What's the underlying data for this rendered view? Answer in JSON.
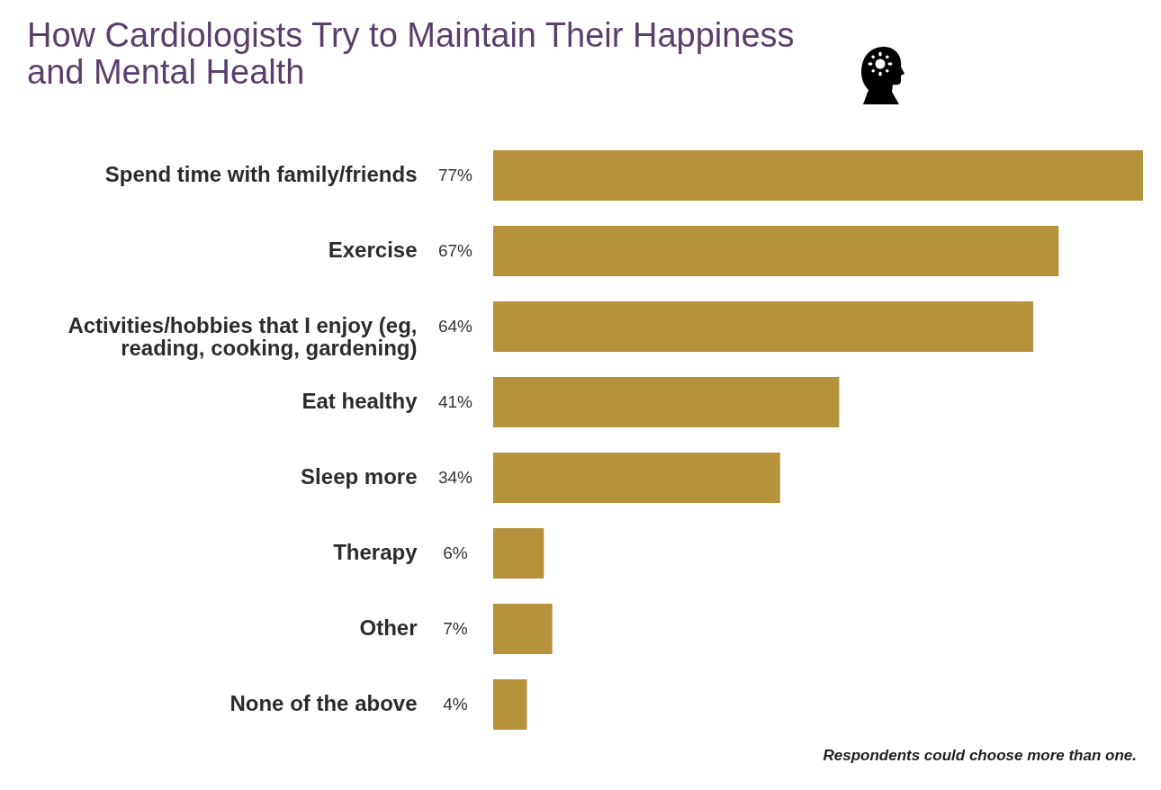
{
  "chart_data": {
    "type": "bar",
    "orientation": "horizontal",
    "title": "How Cardiologists Try to Maintain Their Happiness and Mental Health",
    "categories": [
      "Spend time with family/friends",
      "Exercise",
      "Activities/hobbies that I enjoy (eg, reading, cooking, gardening)",
      "Eat healthy",
      "Sleep more",
      "Therapy",
      "Other",
      "None of the above"
    ],
    "values": [
      77,
      67,
      64,
      41,
      34,
      6,
      7,
      4
    ],
    "value_labels": [
      "77%",
      "67%",
      "64%",
      "41%",
      "34%",
      "6%",
      "7%",
      "4%"
    ],
    "color": "#b5923b",
    "annotations": [
      "Respondents could choose more than one."
    ]
  }
}
